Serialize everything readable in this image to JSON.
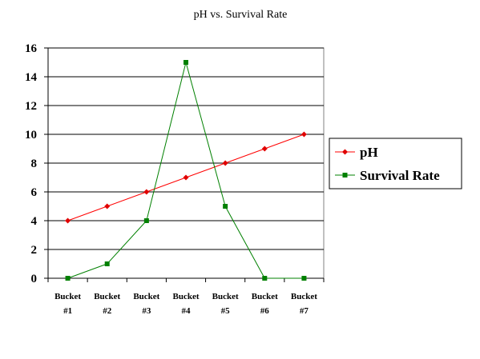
{
  "chart_data": {
    "type": "line",
    "title": "pH vs. Survival Rate",
    "xlabel": "",
    "ylabel": "",
    "categories": [
      [
        "Bucket",
        "#1"
      ],
      [
        "Bucket",
        "#2"
      ],
      [
        "Bucket",
        "#3"
      ],
      [
        "Bucket",
        "#4"
      ],
      [
        "Bucket",
        "#5"
      ],
      [
        "Bucket",
        "#6"
      ],
      [
        "Bucket",
        "#7"
      ]
    ],
    "ylim": [
      0,
      16
    ],
    "yticks": [
      "0",
      "2",
      "4",
      "6",
      "8",
      "10",
      "12",
      "14",
      "16"
    ],
    "grid": true,
    "legend_position": "right",
    "series": [
      {
        "name": "pH",
        "values": [
          4,
          5,
          6,
          7,
          8,
          9,
          10
        ],
        "color": "#ff0000",
        "marker_color": "#e00000",
        "marker": "diamond"
      },
      {
        "name": "Survival Rate",
        "values": [
          0,
          1,
          4,
          15,
          5,
          0,
          0
        ],
        "color": "#008000",
        "marker_color": "#008000",
        "marker": "square"
      }
    ]
  }
}
